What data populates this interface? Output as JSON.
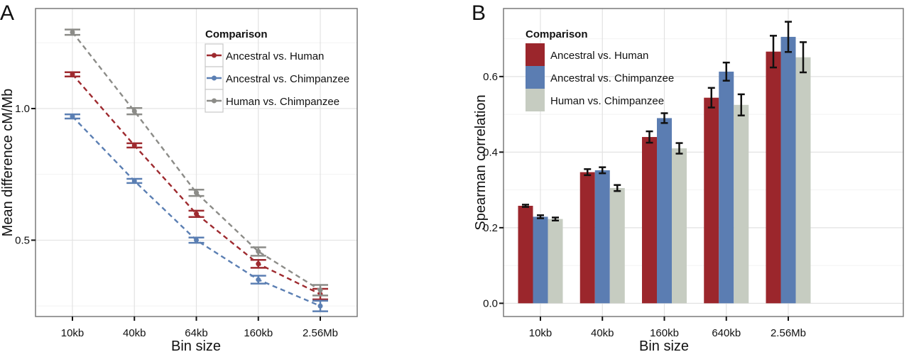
{
  "chart_data": [
    {
      "panel_label": "A",
      "type": "line",
      "xlabel": "Bin size",
      "ylabel": "Mean difference cM/Mb",
      "categories": [
        "10kb",
        "40kb",
        "64kb",
        "160kb",
        "2.56Mb"
      ],
      "yticks": [
        0.5,
        1.0
      ],
      "ytick_labels": [
        "0.5",
        "1.0"
      ],
      "ylim": [
        0.21,
        1.38
      ],
      "grid": true,
      "legend": {
        "title": "Comparison",
        "position": "top-right"
      },
      "series": [
        {
          "name": "Ancestral vs. Human",
          "color": "#9e2a2f",
          "values": [
            1.13,
            0.86,
            0.6,
            0.41,
            0.295
          ],
          "errors": [
            0.008,
            0.008,
            0.012,
            0.015,
            0.02
          ]
        },
        {
          "name": "Ancestral vs. Chimpanzee",
          "color": "#5b7fb3",
          "values": [
            0.97,
            0.725,
            0.5,
            0.35,
            0.25
          ],
          "errors": [
            0.008,
            0.008,
            0.01,
            0.015,
            0.02
          ]
        },
        {
          "name": "Human vs. Chimpanzee",
          "color": "#8c8c88",
          "values": [
            1.29,
            0.99,
            0.68,
            0.457,
            0.31
          ],
          "errors": [
            0.01,
            0.012,
            0.012,
            0.016,
            0.02
          ]
        }
      ]
    },
    {
      "panel_label": "B",
      "type": "bar",
      "xlabel": "Bin size",
      "ylabel": "Spearman correlation",
      "categories": [
        "10kb",
        "40kb",
        "160kb",
        "640kb",
        "2.56Mb"
      ],
      "yticks": [
        0.0,
        0.2,
        0.4,
        0.6
      ],
      "ytick_labels": [
        "0.0",
        "0.2",
        "0.4",
        "0.6"
      ],
      "ylim": [
        -0.035,
        0.78
      ],
      "grid": true,
      "legend": {
        "title": "Comparison",
        "position": "top-left"
      },
      "series": [
        {
          "name": "Ancestral vs. Human",
          "color": "#9b262c",
          "values": [
            0.258,
            0.347,
            0.44,
            0.544,
            0.666
          ],
          "errors": [
            0.003,
            0.008,
            0.015,
            0.026,
            0.042
          ]
        },
        {
          "name": "Ancestral vs. Chimpanzee",
          "color": "#5b7db2",
          "values": [
            0.229,
            0.352,
            0.49,
            0.613,
            0.705
          ],
          "errors": [
            0.004,
            0.008,
            0.013,
            0.024,
            0.04
          ]
        },
        {
          "name": "Human vs. Chimpanzee",
          "color": "#c6ccc1",
          "values": [
            0.223,
            0.305,
            0.41,
            0.525,
            0.651
          ],
          "errors": [
            0.004,
            0.008,
            0.014,
            0.028,
            0.04
          ]
        }
      ]
    }
  ]
}
